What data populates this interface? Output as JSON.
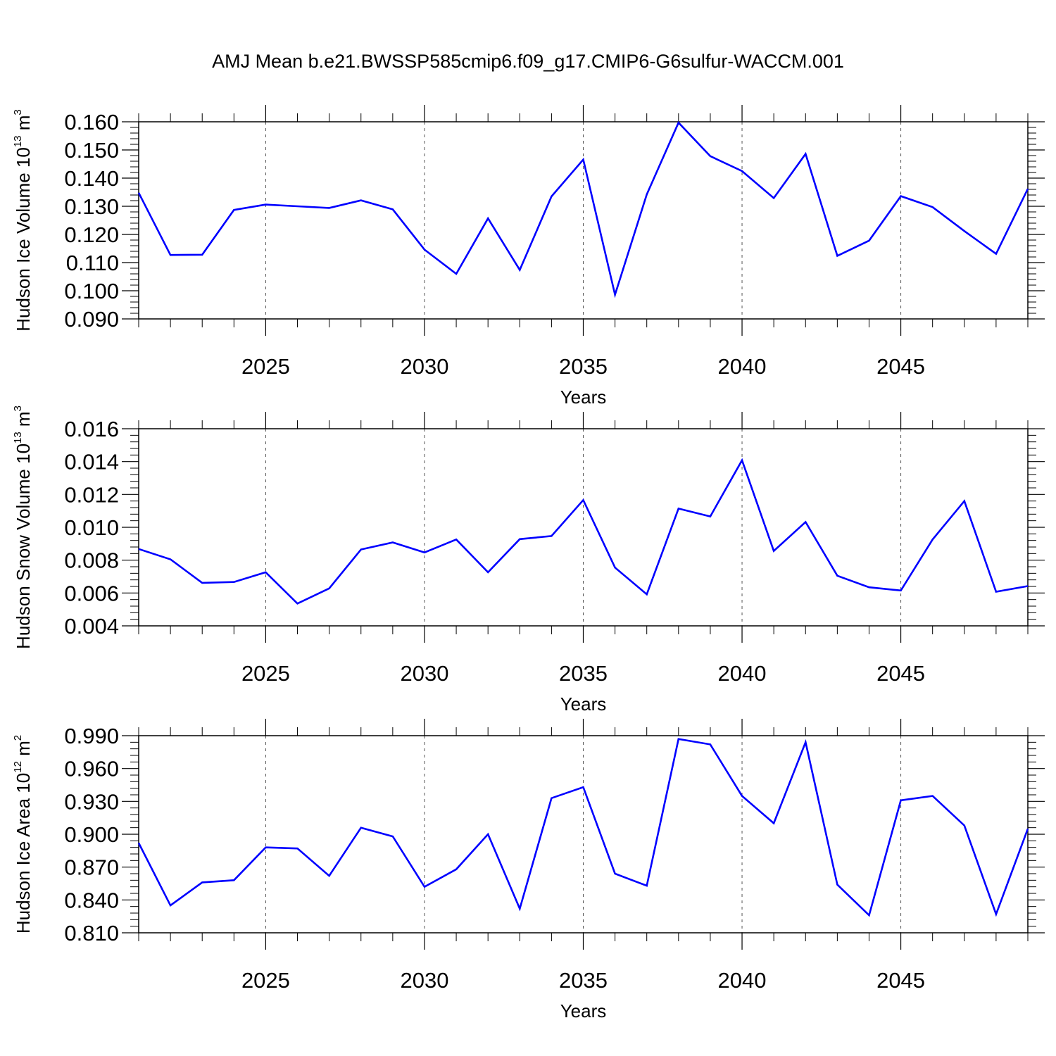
{
  "title": "AMJ Mean b.e21.BWSSP585cmip6.f09_g17.CMIP6-G6sulfur-WACCM.001",
  "colors": {
    "line": "#0000ff",
    "axes": "#000000",
    "grid": "#555555"
  },
  "chart_data": [
    {
      "type": "line",
      "xlabel": "Years",
      "ylabel": {
        "text": "Hudson Ice Volume 10",
        "exponent": "13",
        "unit_text": " m",
        "unit_exponent": "3"
      },
      "xlim": [
        2021,
        2049
      ],
      "ylim": [
        0.09,
        0.16
      ],
      "x_ticks": [
        2025,
        2030,
        2035,
        2040,
        2045
      ],
      "x_tick_labels": [
        "2025",
        "2030",
        "2035",
        "2040",
        "2045"
      ],
      "y_ticks": [
        0.09,
        0.1,
        0.11,
        0.12,
        0.13,
        0.14,
        0.15,
        0.16
      ],
      "y_tick_labels": [
        "0.090",
        "0.100",
        "0.110",
        "0.120",
        "0.130",
        "0.140",
        "0.150",
        "0.160"
      ],
      "grid": "vertical dashed at major x ticks",
      "x": [
        2021,
        2022,
        2023,
        2024,
        2025,
        2026,
        2027,
        2028,
        2029,
        2030,
        2031,
        2032,
        2033,
        2034,
        2035,
        2036,
        2037,
        2038,
        2039,
        2040,
        2041,
        2042,
        2043,
        2044,
        2045,
        2046,
        2047,
        2048,
        2049
      ],
      "values": [
        0.1348,
        0.1127,
        0.1128,
        0.1287,
        0.1306,
        0.13,
        0.1294,
        0.1321,
        0.1289,
        0.1146,
        0.106,
        0.1257,
        0.1074,
        0.1335,
        0.1466,
        0.0986,
        0.1342,
        0.1597,
        0.1478,
        0.1425,
        0.1329,
        0.1486,
        0.1124,
        0.1178,
        0.1336,
        0.1297,
        0.1212,
        0.1131,
        0.1362
      ]
    },
    {
      "type": "line",
      "xlabel": "Years",
      "ylabel": {
        "text": "Hudson Snow Volume 10",
        "exponent": "13",
        "unit_text": " m",
        "unit_exponent": "3"
      },
      "xlim": [
        2021,
        2049
      ],
      "ylim": [
        0.004,
        0.016
      ],
      "x_ticks": [
        2025,
        2030,
        2035,
        2040,
        2045
      ],
      "x_tick_labels": [
        "2025",
        "2030",
        "2035",
        "2040",
        "2045"
      ],
      "y_ticks": [
        0.004,
        0.006,
        0.008,
        0.01,
        0.012,
        0.014,
        0.016
      ],
      "y_tick_labels": [
        "0.004",
        "0.006",
        "0.008",
        "0.010",
        "0.012",
        "0.014",
        "0.016"
      ],
      "grid": "vertical dashed at major x ticks",
      "x": [
        2021,
        2022,
        2023,
        2024,
        2025,
        2026,
        2027,
        2028,
        2029,
        2030,
        2031,
        2032,
        2033,
        2034,
        2035,
        2036,
        2037,
        2038,
        2039,
        2040,
        2041,
        2042,
        2043,
        2044,
        2045,
        2046,
        2047,
        2048,
        2049
      ],
      "values": [
        0.00868,
        0.00805,
        0.00662,
        0.00667,
        0.00726,
        0.00536,
        0.00628,
        0.00865,
        0.00908,
        0.00847,
        0.00926,
        0.00726,
        0.00928,
        0.00947,
        0.01166,
        0.00755,
        0.00592,
        0.01114,
        0.01066,
        0.01408,
        0.00856,
        0.01032,
        0.00705,
        0.00635,
        0.00615,
        0.00926,
        0.0116,
        0.00608,
        0.00642
      ]
    },
    {
      "type": "line",
      "xlabel": "Years",
      "ylabel": {
        "text": "Hudson Ice Area 10",
        "exponent": "12",
        "unit_text": " m",
        "unit_exponent": "2"
      },
      "xlim": [
        2021,
        2049
      ],
      "ylim": [
        0.81,
        0.99
      ],
      "x_ticks": [
        2025,
        2030,
        2035,
        2040,
        2045
      ],
      "x_tick_labels": [
        "2025",
        "2030",
        "2035",
        "2040",
        "2045"
      ],
      "y_ticks": [
        0.81,
        0.84,
        0.87,
        0.9,
        0.93,
        0.96,
        0.99
      ],
      "y_tick_labels": [
        "0.810",
        "0.840",
        "0.870",
        "0.900",
        "0.930",
        "0.960",
        "0.990"
      ],
      "grid": "vertical dashed at major x ticks",
      "x": [
        2021,
        2022,
        2023,
        2024,
        2025,
        2026,
        2027,
        2028,
        2029,
        2030,
        2031,
        2032,
        2033,
        2034,
        2035,
        2036,
        2037,
        2038,
        2039,
        2040,
        2041,
        2042,
        2043,
        2044,
        2045,
        2046,
        2047,
        2048,
        2049
      ],
      "values": [
        0.892,
        0.835,
        0.856,
        0.858,
        0.888,
        0.887,
        0.862,
        0.906,
        0.898,
        0.852,
        0.868,
        0.9,
        0.832,
        0.933,
        0.943,
        0.864,
        0.853,
        0.987,
        0.982,
        0.935,
        0.91,
        0.984,
        0.854,
        0.826,
        0.931,
        0.935,
        0.908,
        0.827,
        0.905
      ]
    }
  ]
}
